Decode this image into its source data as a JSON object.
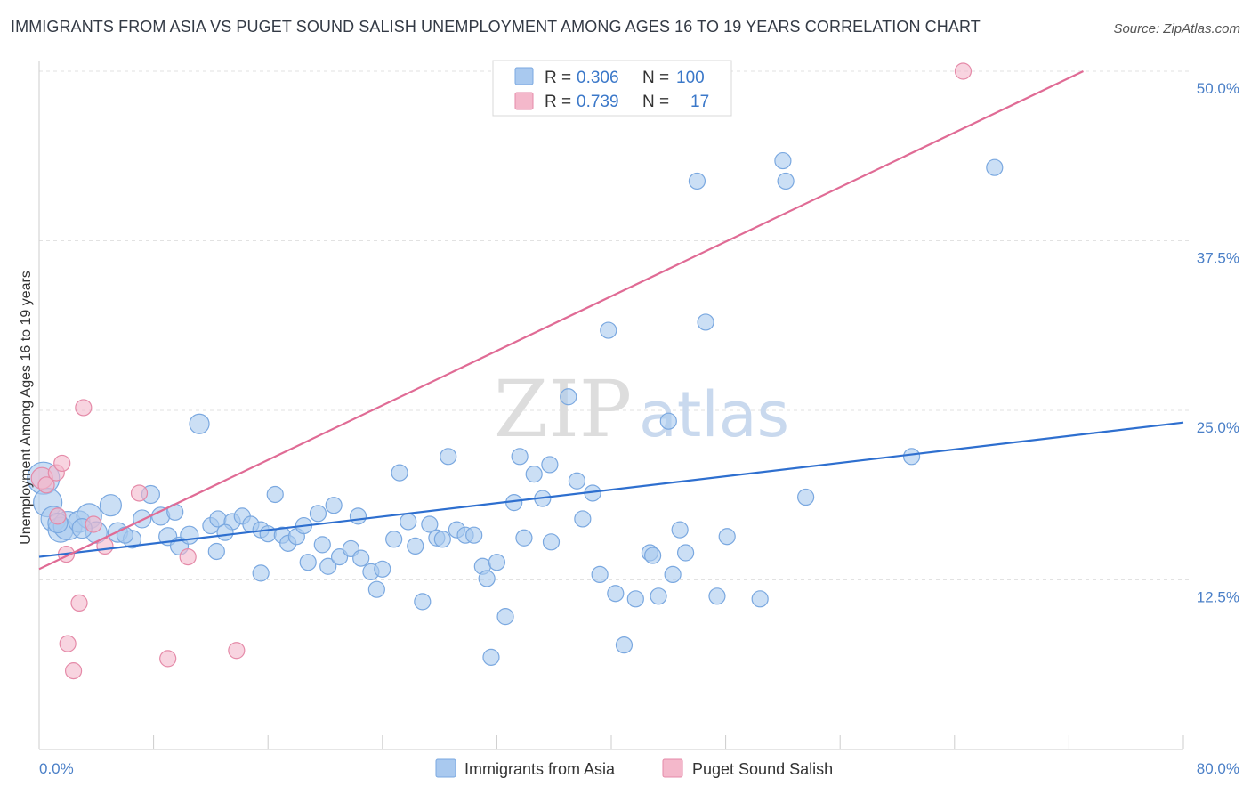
{
  "header": {
    "title": "IMMIGRANTS FROM ASIA VS PUGET SOUND SALISH UNEMPLOYMENT AMONG AGES 16 TO 19 YEARS CORRELATION CHART",
    "source": "Source: ZipAtlas.com"
  },
  "watermark": {
    "zip": "ZIP",
    "atlas": "atlas"
  },
  "legend": {
    "rows": [
      {
        "r_label": "R = ",
        "r_value": "0.306",
        "n_label": "N = ",
        "n_value": "100",
        "color": "#a9c9ef"
      },
      {
        "r_label": "R = ",
        "r_value": "0.739",
        "n_label": "N = ",
        "n_value": "17",
        "color": "#f4b8cb"
      }
    ]
  },
  "chart_data": {
    "type": "scatter",
    "title": "IMMIGRANTS FROM ASIA VS PUGET SOUND SALISH UNEMPLOYMENT AMONG AGES 16 TO 19 YEARS CORRELATION CHART",
    "xlabel": "",
    "ylabel": "Unemployment Among Ages 16 to 19 years",
    "xlim": [
      0,
      80
    ],
    "ylim": [
      0,
      50
    ],
    "x_tick_labels": [
      "0.0%",
      "80.0%"
    ],
    "y_ticks": [
      12.5,
      25.0,
      37.5,
      50.0
    ],
    "y_tick_labels": [
      "12.5%",
      "25.0%",
      "37.5%",
      "50.0%"
    ],
    "grid": true,
    "legend_position": "top-center",
    "series": [
      {
        "name": "Immigrants from Asia",
        "color": "#a9c9ef",
        "stroke": "#7aa8e0",
        "trend": {
          "x": [
            0,
            80
          ],
          "y": [
            14.2,
            24.1
          ],
          "color": "#2e6fcf"
        },
        "points": [
          [
            0.3,
            20.0,
            18
          ],
          [
            0.6,
            18.2,
            16
          ],
          [
            1.0,
            17.0,
            14
          ],
          [
            1.5,
            16.2,
            14
          ],
          [
            2.0,
            16.5,
            16
          ],
          [
            2.8,
            16.8,
            12
          ],
          [
            3.5,
            17.2,
            14
          ],
          [
            4.0,
            16.0,
            12
          ],
          [
            5.0,
            18.0,
            12
          ],
          [
            5.5,
            16.0,
            11
          ],
          [
            6.5,
            15.5,
            10
          ],
          [
            7.2,
            17.0,
            10
          ],
          [
            7.8,
            18.8,
            10
          ],
          [
            8.5,
            17.2,
            10
          ],
          [
            9.0,
            15.7,
            10
          ],
          [
            9.8,
            15.0,
            10
          ],
          [
            10.5,
            15.8,
            10
          ],
          [
            11.2,
            24.0,
            11
          ],
          [
            12.0,
            16.5,
            9
          ],
          [
            12.5,
            17.0,
            9
          ],
          [
            12.4,
            14.6,
            9
          ],
          [
            13.5,
            16.8,
            9
          ],
          [
            14.2,
            17.2,
            9
          ],
          [
            14.8,
            16.6,
            9
          ],
          [
            15.5,
            16.2,
            9
          ],
          [
            16.0,
            15.9,
            9
          ],
          [
            15.5,
            13.0,
            9
          ],
          [
            16.5,
            18.8,
            9
          ],
          [
            17.0,
            15.8,
            9
          ],
          [
            17.4,
            15.2,
            9
          ],
          [
            18.0,
            15.7,
            9
          ],
          [
            18.5,
            16.5,
            9
          ],
          [
            18.8,
            13.8,
            9
          ],
          [
            19.5,
            17.4,
            9
          ],
          [
            19.8,
            15.1,
            9
          ],
          [
            20.2,
            13.5,
            9
          ],
          [
            20.6,
            18.0,
            9
          ],
          [
            21.0,
            14.2,
            9
          ],
          [
            21.8,
            14.8,
            9
          ],
          [
            22.3,
            17.2,
            9
          ],
          [
            22.5,
            14.1,
            9
          ],
          [
            23.2,
            13.1,
            9
          ],
          [
            23.6,
            11.8,
            9
          ],
          [
            24.0,
            13.3,
            9
          ],
          [
            24.8,
            15.5,
            9
          ],
          [
            25.2,
            20.4,
            9
          ],
          [
            25.8,
            16.8,
            9
          ],
          [
            26.3,
            15.0,
            9
          ],
          [
            26.8,
            10.9,
            9
          ],
          [
            27.3,
            16.6,
            9
          ],
          [
            27.8,
            15.6,
            9
          ],
          [
            28.2,
            15.5,
            9
          ],
          [
            28.6,
            21.6,
            9
          ],
          [
            29.2,
            16.2,
            9
          ],
          [
            29.8,
            15.8,
            9
          ],
          [
            30.4,
            15.8,
            9
          ],
          [
            31.0,
            13.5,
            9
          ],
          [
            31.3,
            12.6,
            9
          ],
          [
            31.6,
            6.8,
            9
          ],
          [
            32.0,
            13.8,
            9
          ],
          [
            32.6,
            9.8,
            9
          ],
          [
            33.2,
            18.2,
            9
          ],
          [
            33.6,
            21.6,
            9
          ],
          [
            33.9,
            15.6,
            9
          ],
          [
            34.6,
            20.3,
            9
          ],
          [
            35.2,
            18.5,
            9
          ],
          [
            35.7,
            21.0,
            9
          ],
          [
            35.8,
            15.3,
            9
          ],
          [
            37.0,
            26.0,
            9
          ],
          [
            37.6,
            19.8,
            9
          ],
          [
            38.0,
            17.0,
            9
          ],
          [
            38.7,
            18.9,
            9
          ],
          [
            39.2,
            12.9,
            9
          ],
          [
            39.8,
            30.9,
            9
          ],
          [
            40.3,
            11.5,
            9
          ],
          [
            40.9,
            7.7,
            9
          ],
          [
            41.7,
            11.1,
            9
          ],
          [
            42.7,
            14.5,
            9
          ],
          [
            42.9,
            14.3,
            9
          ],
          [
            43.3,
            11.3,
            9
          ],
          [
            44.0,
            24.2,
            9
          ],
          [
            44.3,
            12.9,
            9
          ],
          [
            44.8,
            16.2,
            9
          ],
          [
            45.2,
            14.5,
            9
          ],
          [
            46.0,
            41.9,
            9
          ],
          [
            46.6,
            31.5,
            9
          ],
          [
            47.4,
            11.3,
            9
          ],
          [
            48.1,
            15.7,
            9
          ],
          [
            50.4,
            11.1,
            9
          ],
          [
            52.0,
            43.4,
            9
          ],
          [
            52.2,
            41.9,
            9
          ],
          [
            53.6,
            18.6,
            9
          ],
          [
            61.0,
            21.6,
            9
          ],
          [
            66.8,
            42.9,
            9
          ],
          [
            1.3,
            16.7,
            11
          ],
          [
            3.0,
            16.3,
            11
          ],
          [
            6.0,
            15.8,
            9
          ],
          [
            9.5,
            17.5,
            9
          ],
          [
            13.0,
            16.0,
            9
          ]
        ]
      },
      {
        "name": "Puget Sound Salish",
        "color": "#f4b8cb",
        "stroke": "#e58aa8",
        "trend": {
          "x": [
            0,
            73
          ],
          "y": [
            13.3,
            50.0
          ],
          "color": "#e06b95"
        },
        "points": [
          [
            0.2,
            20.0,
            12
          ],
          [
            0.5,
            19.5,
            9
          ],
          [
            1.2,
            20.4,
            9
          ],
          [
            1.6,
            21.1,
            9
          ],
          [
            1.3,
            17.2,
            9
          ],
          [
            1.9,
            14.4,
            9
          ],
          [
            2.0,
            7.8,
            9
          ],
          [
            2.4,
            5.8,
            9
          ],
          [
            2.8,
            10.8,
            9
          ],
          [
            3.1,
            25.2,
            9
          ],
          [
            3.8,
            16.6,
            9
          ],
          [
            4.6,
            15.0,
            9
          ],
          [
            7.0,
            18.9,
            9
          ],
          [
            9.0,
            6.7,
            9
          ],
          [
            10.4,
            14.2,
            9
          ],
          [
            13.8,
            7.3,
            9
          ],
          [
            64.6,
            50.0,
            9
          ]
        ]
      }
    ]
  },
  "bottom_legend": {
    "items": [
      {
        "label": "Immigrants from Asia",
        "color": "#a9c9ef"
      },
      {
        "label": "Puget Sound Salish",
        "color": "#f4b8cb"
      }
    ]
  }
}
